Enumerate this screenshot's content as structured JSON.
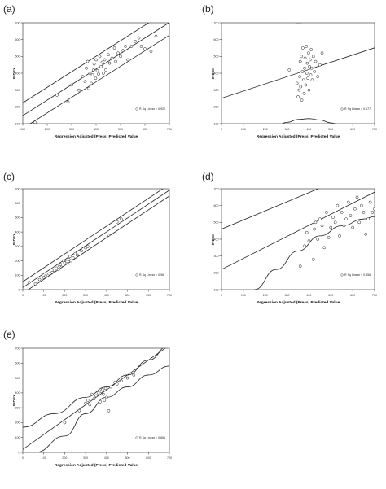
{
  "figure": {
    "panels": [
      "(a)",
      "(b)",
      "(c)",
      "(d)",
      "(e)"
    ]
  },
  "chart_data": [
    {
      "label": "(a)",
      "type": "scatter",
      "xlabel": "Regression Adjusted (Press) Predicted Value",
      "ylabel": "INDEX",
      "xlim": [
        100,
        700
      ],
      "ylim": [
        100,
        700
      ],
      "xticks": [
        100,
        200,
        300,
        400,
        500,
        600,
        700
      ],
      "yticks": [
        100,
        200,
        300,
        400,
        500,
        600,
        700
      ],
      "legend": "R Sq Linear = 0.920",
      "legend_position": "bottom-right",
      "points": [
        [
          150,
          108
        ],
        [
          240,
          270
        ],
        [
          285,
          230
        ],
        [
          300,
          330
        ],
        [
          330,
          300
        ],
        [
          345,
          380
        ],
        [
          355,
          350
        ],
        [
          360,
          430
        ],
        [
          365,
          470
        ],
        [
          370,
          310
        ],
        [
          375,
          400
        ],
        [
          380,
          340
        ],
        [
          385,
          390
        ],
        [
          390,
          420
        ],
        [
          392,
          455
        ],
        [
          398,
          370
        ],
        [
          400,
          480
        ],
        [
          405,
          415
        ],
        [
          410,
          395
        ],
        [
          415,
          500
        ],
        [
          420,
          440
        ],
        [
          425,
          465
        ],
        [
          430,
          400
        ],
        [
          435,
          480
        ],
        [
          440,
          420
        ],
        [
          450,
          510
        ],
        [
          455,
          460
        ],
        [
          465,
          490
        ],
        [
          475,
          550
        ],
        [
          480,
          470
        ],
        [
          490,
          520
        ],
        [
          500,
          500
        ],
        [
          510,
          535
        ],
        [
          520,
          560
        ],
        [
          530,
          480
        ],
        [
          545,
          560
        ],
        [
          560,
          590
        ],
        [
          575,
          610
        ],
        [
          585,
          560
        ],
        [
          600,
          545
        ],
        [
          625,
          530
        ],
        [
          645,
          620
        ]
      ],
      "fit": [
        [
          100,
          148
        ],
        [
          700,
          702
        ]
      ],
      "band_upper": [
        [
          100,
          224
        ],
        [
          700,
          778
        ]
      ],
      "band_lower": [
        [
          100,
          72
        ],
        [
          700,
          626
        ]
      ]
    },
    {
      "label": "(b)",
      "type": "scatter",
      "xlabel": "Regression Adjusted (Press) Predicted Value",
      "ylabel": "INDEX",
      "xlim": [
        0,
        700
      ],
      "ylim": [
        100,
        700
      ],
      "xticks": [
        0,
        100,
        200,
        300,
        400,
        500,
        600,
        700
      ],
      "yticks": [
        100,
        200,
        300,
        400,
        500,
        600,
        700
      ],
      "legend": "R Sq Linear = 0.177",
      "legend_position": "bottom-right",
      "points": [
        [
          310,
          420
        ],
        [
          345,
          340
        ],
        [
          350,
          260
        ],
        [
          355,
          300
        ],
        [
          358,
          380
        ],
        [
          360,
          470
        ],
        [
          362,
          320
        ],
        [
          365,
          500
        ],
        [
          367,
          240
        ],
        [
          370,
          410
        ],
        [
          372,
          550
        ],
        [
          375,
          360
        ],
        [
          378,
          280
        ],
        [
          380,
          430
        ],
        [
          382,
          490
        ],
        [
          385,
          330
        ],
        [
          388,
          560
        ],
        [
          390,
          400
        ],
        [
          392,
          460
        ],
        [
          395,
          370
        ],
        [
          398,
          520
        ],
        [
          400,
          300
        ],
        [
          402,
          440
        ],
        [
          405,
          480
        ],
        [
          408,
          390
        ],
        [
          410,
          540
        ],
        [
          412,
          430
        ],
        [
          415,
          360
        ],
        [
          420,
          500
        ],
        [
          425,
          410
        ],
        [
          430,
          470
        ],
        [
          440,
          380
        ],
        [
          450,
          450
        ],
        [
          460,
          520
        ]
      ],
      "fit": [
        [
          0,
          251
        ],
        [
          700,
          551
        ]
      ],
      "band_upper_curve": [
        [
          200,
          770
        ],
        [
          250,
          730
        ],
        [
          300,
          710
        ],
        [
          350,
          700
        ],
        [
          400,
          705
        ],
        [
          450,
          718
        ],
        [
          500,
          742
        ],
        [
          550,
          775
        ]
      ],
      "band_lower_curve": [
        [
          230,
          60
        ],
        [
          300,
          108
        ],
        [
          350,
          125
        ],
        [
          400,
          130
        ],
        [
          450,
          122
        ],
        [
          500,
          105
        ],
        [
          560,
          80
        ],
        [
          620,
          55
        ]
      ]
    },
    {
      "label": "(c)",
      "type": "scatter",
      "xlabel": "Regression Adjusted (Press) Predicted Value",
      "ylabel": "INDEX",
      "xlim": [
        0,
        700
      ],
      "ylim": [
        0,
        700
      ],
      "xticks": [
        0,
        100,
        200,
        300,
        400,
        500,
        600,
        700
      ],
      "yticks": [
        0,
        100,
        200,
        300,
        400,
        500,
        600,
        700
      ],
      "legend": "R Sq Linear = 0.96",
      "legend_position": "bottom-right",
      "points": [
        [
          30,
          50
        ],
        [
          60,
          40
        ],
        [
          80,
          70
        ],
        [
          100,
          85
        ],
        [
          110,
          95
        ],
        [
          125,
          110
        ],
        [
          140,
          120
        ],
        [
          150,
          135
        ],
        [
          160,
          150
        ],
        [
          170,
          140
        ],
        [
          175,
          165
        ],
        [
          180,
          175
        ],
        [
          190,
          170
        ],
        [
          195,
          200
        ],
        [
          200,
          185
        ],
        [
          210,
          195
        ],
        [
          220,
          210
        ],
        [
          225,
          230
        ],
        [
          230,
          200
        ],
        [
          240,
          220
        ],
        [
          250,
          250
        ],
        [
          260,
          240
        ],
        [
          280,
          270
        ],
        [
          300,
          290
        ],
        [
          310,
          300
        ],
        [
          410,
          380
        ],
        [
          450,
          470
        ],
        [
          470,
          490
        ]
      ],
      "fit": [
        [
          0,
          15
        ],
        [
          700,
          690
        ]
      ],
      "band_upper": [
        [
          0,
          55
        ],
        [
          700,
          730
        ]
      ],
      "band_lower": [
        [
          0,
          -25
        ],
        [
          700,
          650
        ]
      ]
    },
    {
      "label": "(d)",
      "type": "scatter",
      "xlabel": "Regression Adjusted (Press) Predicted Value",
      "ylabel": "INDEX",
      "xlim": [
        0,
        700
      ],
      "ylim": [
        100,
        700
      ],
      "xticks": [
        0,
        100,
        200,
        300,
        400,
        500,
        600,
        700
      ],
      "yticks": [
        100,
        200,
        300,
        400,
        500,
        600,
        700
      ],
      "legend": "R Sq Linear = 0.356",
      "legend_position": "bottom-right",
      "points": [
        [
          360,
          240
        ],
        [
          380,
          360
        ],
        [
          390,
          440
        ],
        [
          400,
          390
        ],
        [
          420,
          280
        ],
        [
          425,
          460
        ],
        [
          430,
          500
        ],
        [
          440,
          400
        ],
        [
          450,
          520
        ],
        [
          460,
          480
        ],
        [
          470,
          350
        ],
        [
          480,
          560
        ],
        [
          490,
          410
        ],
        [
          500,
          470
        ],
        [
          510,
          530
        ],
        [
          520,
          500
        ],
        [
          530,
          600
        ],
        [
          540,
          420
        ],
        [
          550,
          560
        ],
        [
          560,
          480
        ],
        [
          570,
          520
        ],
        [
          580,
          620
        ],
        [
          590,
          540
        ],
        [
          600,
          470
        ],
        [
          610,
          580
        ],
        [
          620,
          650
        ],
        [
          630,
          500
        ],
        [
          640,
          600
        ],
        [
          650,
          560
        ],
        [
          660,
          430
        ],
        [
          670,
          520
        ],
        [
          680,
          620
        ],
        [
          690,
          560
        ],
        [
          700,
          580
        ],
        [
          710,
          460
        ]
      ],
      "fit": [
        [
          0,
          220
        ],
        [
          700,
          680
        ]
      ],
      "band_upper": [
        [
          0,
          460
        ],
        [
          700,
          840
        ]
      ],
      "band_lower_curve": [
        [
          150,
          100
        ],
        [
          250,
          220
        ],
        [
          350,
          330
        ],
        [
          450,
          420
        ],
        [
          550,
          480
        ],
        [
          650,
          520
        ],
        [
          700,
          535
        ]
      ]
    },
    {
      "label": "(e)",
      "type": "scatter",
      "xlabel": "Regression Adjusted (Press) Predicted Value",
      "ylabel": "INDEX",
      "xlim": [
        0,
        700
      ],
      "ylim": [
        0,
        700
      ],
      "xticks": [
        0,
        100,
        200,
        300,
        400,
        500,
        600,
        700
      ],
      "yticks": [
        0,
        100,
        200,
        300,
        400,
        500,
        600,
        700
      ],
      "legend": "R Sq Linear = 0.661",
      "legend_position": "bottom-right",
      "points": [
        [
          200,
          200
        ],
        [
          270,
          280
        ],
        [
          300,
          330
        ],
        [
          310,
          350
        ],
        [
          320,
          320
        ],
        [
          330,
          390
        ],
        [
          340,
          360
        ],
        [
          350,
          380
        ],
        [
          360,
          400
        ],
        [
          370,
          340
        ],
        [
          375,
          410
        ],
        [
          380,
          420
        ],
        [
          385,
          390
        ],
        [
          390,
          350
        ],
        [
          395,
          430
        ],
        [
          400,
          370
        ],
        [
          410,
          280
        ],
        [
          420,
          440
        ],
        [
          440,
          470
        ],
        [
          450,
          460
        ],
        [
          470,
          480
        ],
        [
          500,
          500
        ],
        [
          530,
          520
        ]
      ],
      "fit": [
        [
          0,
          20
        ],
        [
          700,
          720
        ]
      ],
      "band_upper_curve": [
        [
          0,
          170
        ],
        [
          150,
          260
        ],
        [
          300,
          370
        ],
        [
          400,
          440
        ],
        [
          500,
          520
        ],
        [
          600,
          620
        ],
        [
          700,
          720
        ]
      ],
      "band_lower_curve": [
        [
          60,
          0
        ],
        [
          200,
          110
        ],
        [
          300,
          260
        ],
        [
          400,
          370
        ],
        [
          500,
          440
        ],
        [
          600,
          520
        ],
        [
          700,
          580
        ]
      ]
    }
  ]
}
